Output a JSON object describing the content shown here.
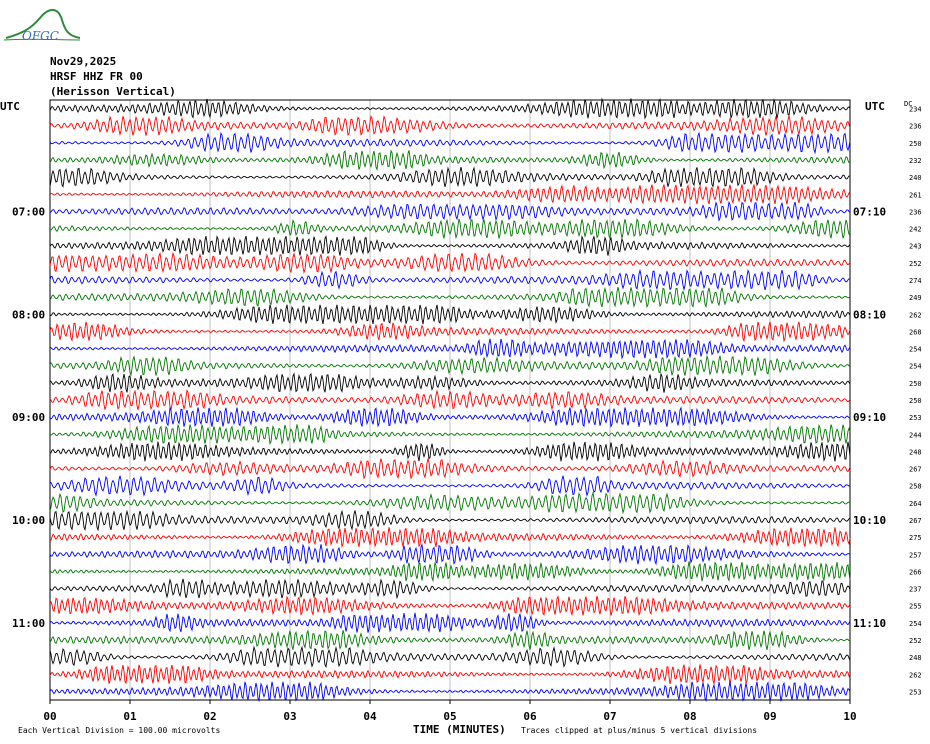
{
  "header": {
    "logo_text": "OFGC",
    "date": "Nov29,2025",
    "station": "HRSF HHZ FR 00",
    "location": "(Herisson Vertical)"
  },
  "colors": {
    "trace_cycle": [
      "#000000",
      "#ff0000",
      "#0000ff",
      "#007700"
    ],
    "logo": "#2f8a3a",
    "logo_text": "#3a6fb0"
  },
  "chart_data": {
    "type": "line",
    "title": "HRSF HHZ FR 00",
    "xlabel": "TIME (MINUTES)",
    "x_ticks": [
      "00",
      "01",
      "02",
      "03",
      "04",
      "05",
      "06",
      "07",
      "08",
      "09",
      "10"
    ],
    "xlim": [
      0,
      10
    ],
    "left_label_top": "UTC",
    "right_label_top": "UTC",
    "dc_label": "DC",
    "left_hour_labels": [
      {
        "row": 6,
        "label": "07:00"
      },
      {
        "row": 12,
        "label": "08:00"
      },
      {
        "row": 18,
        "label": "09:00"
      },
      {
        "row": 24,
        "label": "10:00"
      },
      {
        "row": 30,
        "label": "11:00"
      }
    ],
    "right_hour_labels": [
      {
        "row": 6,
        "label": "07:10"
      },
      {
        "row": 12,
        "label": "08:10"
      },
      {
        "row": 18,
        "label": "09:10"
      },
      {
        "row": 24,
        "label": "10:10"
      },
      {
        "row": 30,
        "label": "11:10"
      }
    ],
    "dc_offsets": [
      234,
      236,
      250,
      232,
      240,
      261,
      236,
      242,
      243,
      252,
      274,
      249,
      262,
      268,
      254,
      254,
      250,
      250,
      253,
      244,
      248,
      267,
      258,
      264,
      267,
      275,
      257,
      266,
      237,
      255,
      254,
      252,
      248,
      262,
      253
    ],
    "trace_count": 35,
    "footer_left": "Each Vertical Division =  100.00 microvolts",
    "footer_right": "Traces clipped at plus/minus 5 vertical divisions",
    "grid": true
  }
}
